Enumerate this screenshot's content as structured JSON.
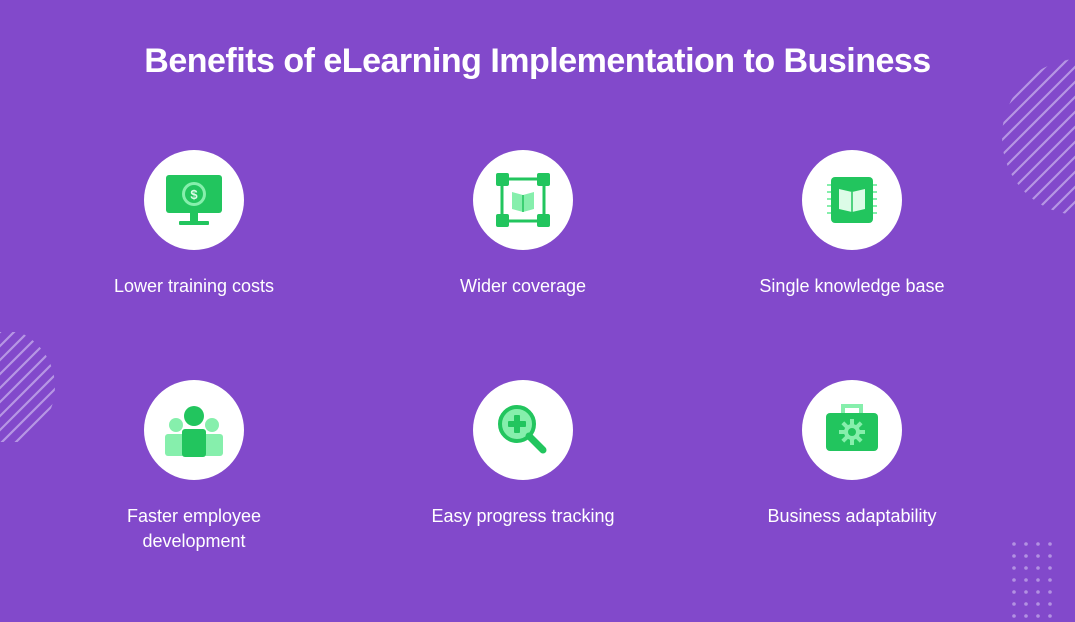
{
  "title": "Benefits of eLearning Implementation to Business",
  "colors": {
    "background": "#8249cb",
    "text": "#ffffff",
    "icon_green": "#22c55e",
    "icon_light_green": "#86efac",
    "icon_circle": "#ffffff"
  },
  "benefits": [
    {
      "label": "Lower training costs",
      "icon": "monitor-dollar-icon"
    },
    {
      "label": "Wider coverage",
      "icon": "network-book-icon"
    },
    {
      "label": "Single knowledge base",
      "icon": "book-icon"
    },
    {
      "label": "Faster employee development",
      "icon": "team-icon"
    },
    {
      "label": "Easy progress tracking",
      "icon": "magnifier-plus-icon"
    },
    {
      "label": "Business adaptability",
      "icon": "briefcase-gear-icon"
    }
  ]
}
